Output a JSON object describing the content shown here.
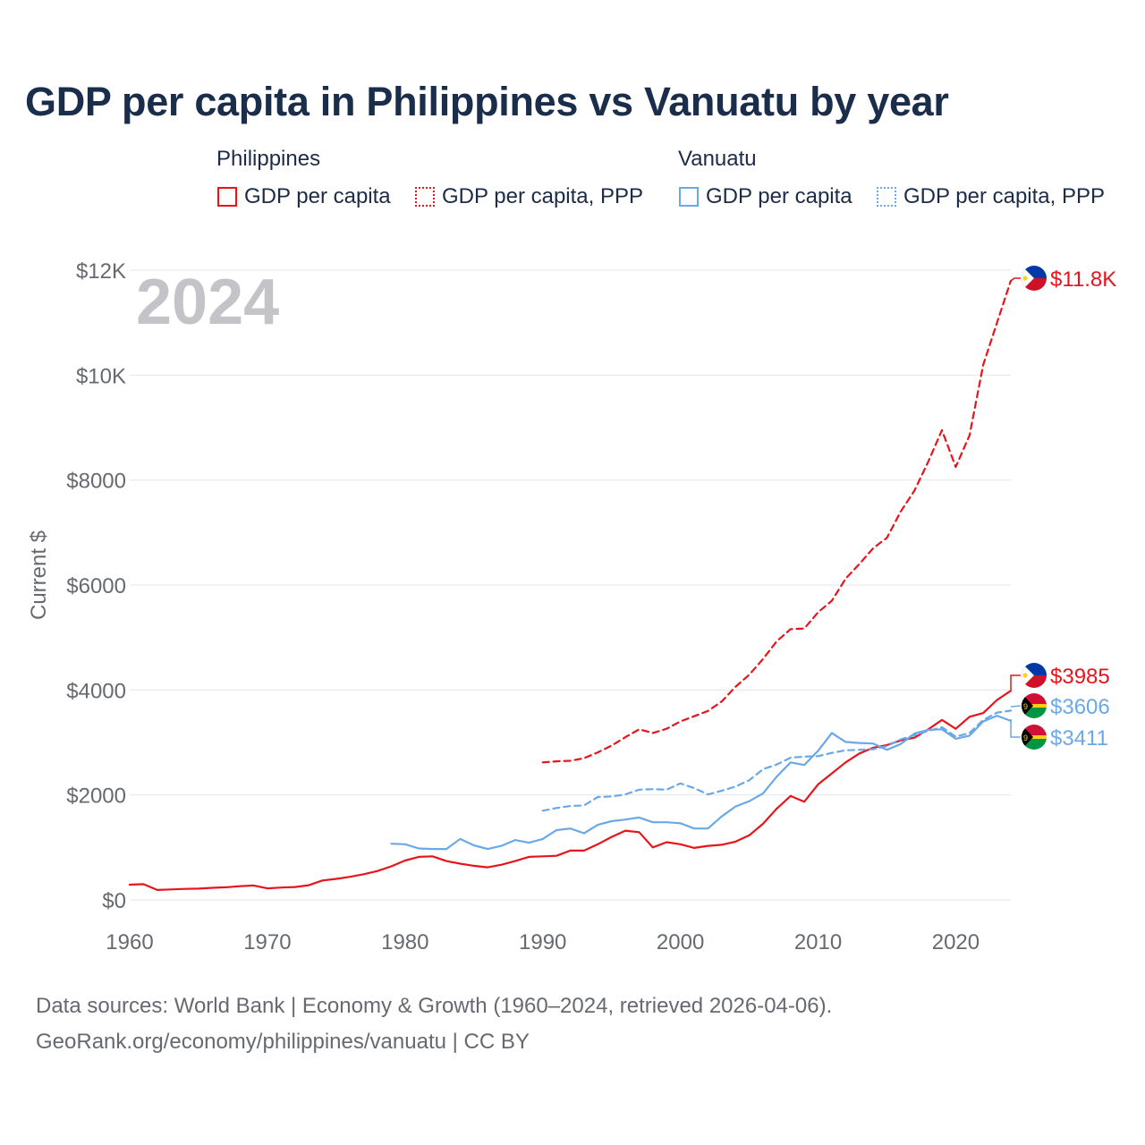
{
  "title": "GDP per capita in Philippines vs Vanuatu by year",
  "legend": {
    "groups": [
      {
        "country": "Philippines",
        "items": [
          {
            "label": "GDP per capita",
            "style": "solid",
            "color": "#e8141c"
          },
          {
            "label": "GDP per capita, PPP",
            "style": "dotted",
            "color": "#e8141c"
          }
        ]
      },
      {
        "country": "Vanuatu",
        "items": [
          {
            "label": "GDP per capita",
            "style": "solid",
            "color": "#6aa8e8"
          },
          {
            "label": "GDP per capita, PPP",
            "style": "dotted",
            "color": "#6aa8e8"
          }
        ]
      }
    ]
  },
  "source": {
    "line1": "Data sources: World Bank | Economy & Growth (1960–2024, retrieved 2026-04-06).",
    "line2": "GeoRank.org/economy/philippines/vanuatu | CC BY"
  },
  "colors": {
    "philippines": "#e8141c",
    "vanuatu": "#6aa8e8",
    "grid": "#e6e6e6",
    "axis_text": "#666a70",
    "year_watermark": "#c4c4c8"
  },
  "chart_data": {
    "type": "line",
    "year_label": "2024",
    "ylabel": "Current $",
    "xlim": [
      1960,
      2024
    ],
    "ylim": [
      0,
      12000
    ],
    "x_ticks": [
      1960,
      1970,
      1980,
      1990,
      2000,
      2010,
      2020
    ],
    "y_ticks": [
      {
        "value": 0,
        "label": "$0"
      },
      {
        "value": 2000,
        "label": "$2000"
      },
      {
        "value": 4000,
        "label": "$4000"
      },
      {
        "value": 6000,
        "label": "$6000"
      },
      {
        "value": 8000,
        "label": "$8000"
      },
      {
        "value": 10000,
        "label": "$10K"
      },
      {
        "value": 12000,
        "label": "$12K"
      }
    ],
    "series": [
      {
        "name": "Philippines GDP per capita",
        "country": "Philippines",
        "style": "solid",
        "color": "#e8141c",
        "start_year": 1960,
        "end_label": "$3985",
        "values": [
          290,
          300,
          190,
          200,
          210,
          215,
          230,
          240,
          260,
          275,
          220,
          235,
          245,
          280,
          370,
          400,
          440,
          490,
          550,
          640,
          750,
          820,
          830,
          740,
          690,
          650,
          620,
          670,
          740,
          820,
          830,
          840,
          940,
          940,
          1060,
          1200,
          1320,
          1290,
          1000,
          1100,
          1060,
          990,
          1030,
          1050,
          1110,
          1230,
          1450,
          1740,
          1980,
          1870,
          2200,
          2410,
          2620,
          2790,
          2900,
          2950,
          3040,
          3090,
          3250,
          3430,
          3260,
          3490,
          3560,
          3810,
          3985
        ]
      },
      {
        "name": "Philippines GDP per capita, PPP",
        "country": "Philippines",
        "style": "dashed",
        "color": "#e8141c",
        "start_year": 1990,
        "end_label": "$11.8K",
        "values": [
          2620,
          2640,
          2650,
          2700,
          2810,
          2940,
          3100,
          3250,
          3180,
          3260,
          3400,
          3500,
          3600,
          3780,
          4060,
          4290,
          4590,
          4930,
          5160,
          5170,
          5480,
          5700,
          6120,
          6400,
          6700,
          6900,
          7400,
          7800,
          8350,
          8950,
          8250,
          8850,
          10200,
          11000,
          11800
        ]
      },
      {
        "name": "Vanuatu GDP per capita",
        "country": "Vanuatu",
        "style": "solid",
        "color": "#6aa8e8",
        "start_year": 1979,
        "end_label": "$3411",
        "values": [
          1070,
          1060,
          980,
          970,
          970,
          1160,
          1040,
          970,
          1030,
          1140,
          1090,
          1160,
          1330,
          1360,
          1270,
          1430,
          1500,
          1530,
          1570,
          1480,
          1480,
          1460,
          1360,
          1360,
          1590,
          1780,
          1880,
          2030,
          2350,
          2620,
          2570,
          2840,
          3180,
          3010,
          2990,
          2980,
          2860,
          2970,
          3170,
          3240,
          3250,
          3070,
          3130,
          3400,
          3510,
          3411
        ]
      },
      {
        "name": "Vanuatu GDP per capita, PPP",
        "country": "Vanuatu",
        "style": "dashed",
        "color": "#6aa8e8",
        "start_year": 1990,
        "end_label": "$3606",
        "values": [
          1700,
          1750,
          1790,
          1800,
          1960,
          1970,
          2010,
          2100,
          2110,
          2100,
          2220,
          2130,
          2010,
          2080,
          2160,
          2280,
          2490,
          2580,
          2710,
          2730,
          2740,
          2800,
          2850,
          2860,
          2870,
          2930,
          3060,
          3140,
          3220,
          3290,
          3110,
          3180,
          3430,
          3570,
          3606
        ]
      }
    ]
  }
}
